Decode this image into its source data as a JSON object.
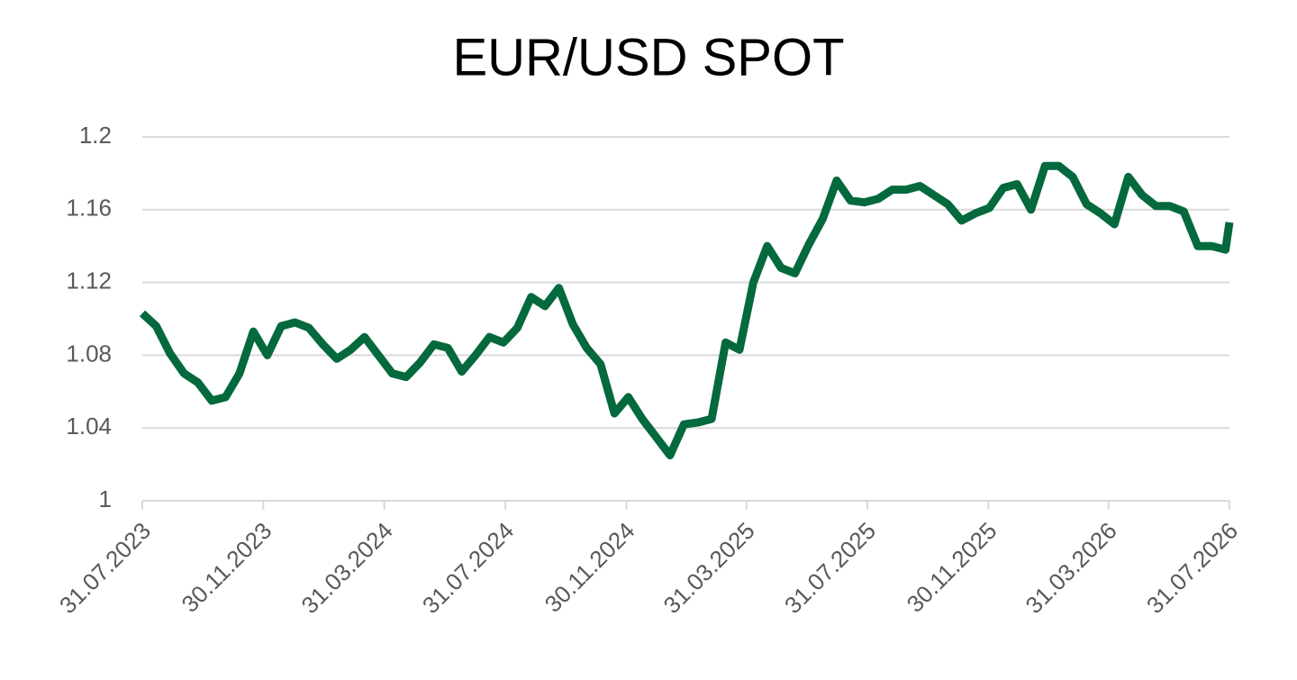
{
  "chart_data": {
    "type": "line",
    "title": "EUR/USD SPOT",
    "x": [
      "2023-07-31",
      "2023-08-14",
      "2023-08-28",
      "2023-09-11",
      "2023-09-25",
      "2023-10-09",
      "2023-10-23",
      "2023-11-06",
      "2023-11-20",
      "2023-12-04",
      "2023-12-18",
      "2024-01-01",
      "2024-01-15",
      "2024-01-29",
      "2024-02-12",
      "2024-02-26",
      "2024-03-11",
      "2024-03-25",
      "2024-04-08",
      "2024-04-22",
      "2024-05-06",
      "2024-05-20",
      "2024-06-03",
      "2024-06-17",
      "2024-07-01",
      "2024-07-15",
      "2024-07-29",
      "2024-08-12",
      "2024-08-26",
      "2024-09-09",
      "2024-09-23",
      "2024-10-07",
      "2024-10-21",
      "2024-11-04",
      "2024-11-18",
      "2024-12-02",
      "2024-12-16",
      "2024-12-30",
      "2025-01-13",
      "2025-01-27",
      "2025-02-10",
      "2025-02-24",
      "2025-03-10",
      "2025-03-24",
      "2025-04-07",
      "2025-04-21",
      "2025-05-05",
      "2025-05-19",
      "2025-06-02",
      "2025-06-16",
      "2025-06-30",
      "2025-07-14",
      "2025-07-28",
      "2025-08-11",
      "2025-08-25",
      "2025-09-08",
      "2025-09-22",
      "2025-10-06",
      "2025-10-20",
      "2025-11-03",
      "2025-11-17",
      "2025-12-01",
      "2025-12-15",
      "2025-12-29",
      "2026-01-12",
      "2026-01-26",
      "2026-02-09",
      "2026-02-23",
      "2026-03-09",
      "2026-03-23",
      "2026-04-06",
      "2026-04-20",
      "2026-05-04",
      "2026-05-18",
      "2026-06-01",
      "2026-06-15",
      "2026-06-29",
      "2026-07-13",
      "2026-07-27",
      "2026-07-31"
    ],
    "series": [
      {
        "name": "EUR/USD",
        "color": "#05693e",
        "values": [
          1.103,
          1.096,
          1.081,
          1.07,
          1.065,
          1.055,
          1.057,
          1.07,
          1.093,
          1.08,
          1.096,
          1.098,
          1.095,
          1.086,
          1.078,
          1.083,
          1.09,
          1.08,
          1.07,
          1.068,
          1.076,
          1.086,
          1.084,
          1.071,
          1.08,
          1.09,
          1.087,
          1.095,
          1.112,
          1.107,
          1.117,
          1.097,
          1.084,
          1.075,
          1.048,
          1.057,
          1.045,
          1.035,
          1.025,
          1.042,
          1.043,
          1.045,
          1.087,
          1.083,
          1.12,
          1.14,
          1.128,
          1.125,
          1.141,
          1.155,
          1.176,
          1.165,
          1.164,
          1.166,
          1.171,
          1.171,
          1.173,
          1.168,
          1.163,
          1.154,
          1.158,
          1.161,
          1.172,
          1.174,
          1.16,
          1.184,
          1.184,
          1.178,
          1.163,
          1.158,
          1.152,
          1.178,
          1.168,
          1.162,
          1.162,
          1.159,
          1.14,
          1.14,
          1.138,
          1.153
        ]
      }
    ],
    "xlim": [
      "2023-07-31",
      "2026-07-31"
    ],
    "xticks": [
      {
        "value": "2023-07-31",
        "label": "31.07.2023"
      },
      {
        "value": "2023-11-30",
        "label": "30.11.2023"
      },
      {
        "value": "2024-03-31",
        "label": "31.03.2024"
      },
      {
        "value": "2024-07-31",
        "label": "31.07.2024"
      },
      {
        "value": "2024-11-30",
        "label": "30.11.2024"
      },
      {
        "value": "2025-03-31",
        "label": "31.03.2025"
      },
      {
        "value": "2025-07-31",
        "label": "31.07.2025"
      },
      {
        "value": "2025-11-30",
        "label": "30.11.2025"
      },
      {
        "value": "2026-03-31",
        "label": "31.03.2026"
      },
      {
        "value": "2026-07-31",
        "label": "31.07.2026"
      }
    ],
    "ylim": [
      1,
      1.2
    ],
    "yticks": [
      1,
      1.04,
      1.08,
      1.12,
      1.16,
      1.2
    ],
    "grid": true
  }
}
